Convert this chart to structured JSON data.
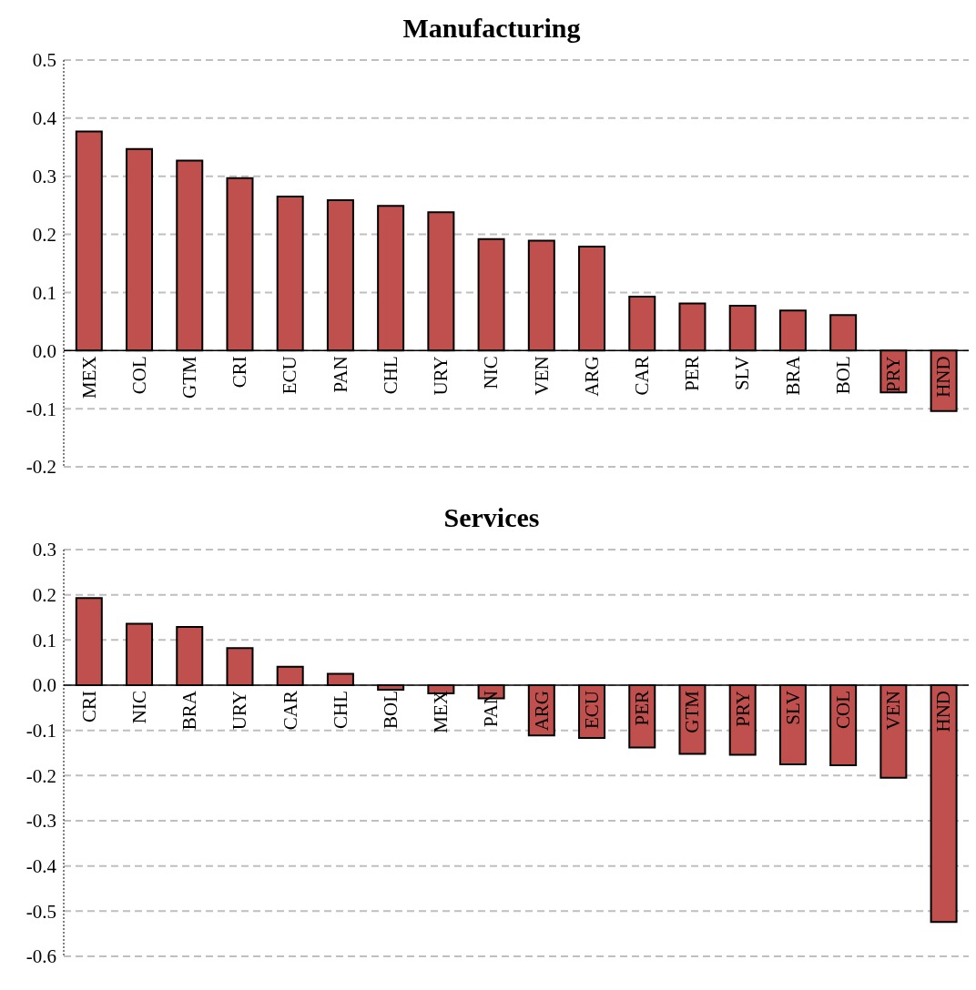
{
  "chart_data": [
    {
      "type": "bar",
      "title": "Manufacturing",
      "categories": [
        "MEX",
        "COL",
        "GTM",
        "CRI",
        "ECU",
        "PAN",
        "CHL",
        "URY",
        "NIC",
        "VEN",
        "ARG",
        "CAR",
        "PER",
        "SLV",
        "BRA",
        "BOL",
        "PRY",
        "HND"
      ],
      "values": [
        0.377,
        0.347,
        0.327,
        0.297,
        0.265,
        0.259,
        0.249,
        0.238,
        0.192,
        0.189,
        0.179,
        0.093,
        0.081,
        0.077,
        0.069,
        0.061,
        -0.072,
        -0.104
      ],
      "color": "#c0504d",
      "ylim": [
        -0.2,
        0.5
      ],
      "yticks": [
        {
          "value": -0.2,
          "label": "-0.2"
        },
        {
          "value": -0.1,
          "label": "-0.1"
        },
        {
          "value": 0,
          "label": "0.0"
        },
        {
          "value": 0.1,
          "label": "0.1"
        },
        {
          "value": 0.2,
          "label": "0.2"
        },
        {
          "value": 0.3,
          "label": "0.3"
        },
        {
          "value": 0.4,
          "label": "0.4"
        },
        {
          "value": 0.5,
          "label": "0.5"
        }
      ],
      "grid": "y"
    },
    {
      "type": "bar",
      "title": "Services",
      "categories": [
        "CRI",
        "NIC",
        "BRA",
        "URY",
        "CAR",
        "CHL",
        "BOL",
        "MEX",
        "PAN",
        "ARG",
        "ECU",
        "PER",
        "GTM",
        "PRY",
        "SLV",
        "COL",
        "VEN",
        "HND"
      ],
      "values": [
        0.193,
        0.136,
        0.129,
        0.082,
        0.041,
        0.025,
        -0.01,
        -0.018,
        -0.029,
        -0.111,
        -0.117,
        -0.138,
        -0.152,
        -0.154,
        -0.175,
        -0.177,
        -0.205,
        -0.524
      ],
      "color": "#c0504d",
      "ylim": [
        -0.6,
        0.3
      ],
      "yticks": [
        {
          "value": -0.6,
          "label": "-0.6"
        },
        {
          "value": -0.5,
          "label": "-0.5"
        },
        {
          "value": -0.4,
          "label": "-0.4"
        },
        {
          "value": -0.3,
          "label": "-0.3"
        },
        {
          "value": -0.2,
          "label": "-0.2"
        },
        {
          "value": -0.1,
          "label": "-0.1"
        },
        {
          "value": 0,
          "label": "0.0"
        },
        {
          "value": 0.1,
          "label": "0.1"
        },
        {
          "value": 0.2,
          "label": "0.2"
        },
        {
          "value": 0.3,
          "label": "0.3"
        }
      ],
      "grid": "y"
    }
  ]
}
